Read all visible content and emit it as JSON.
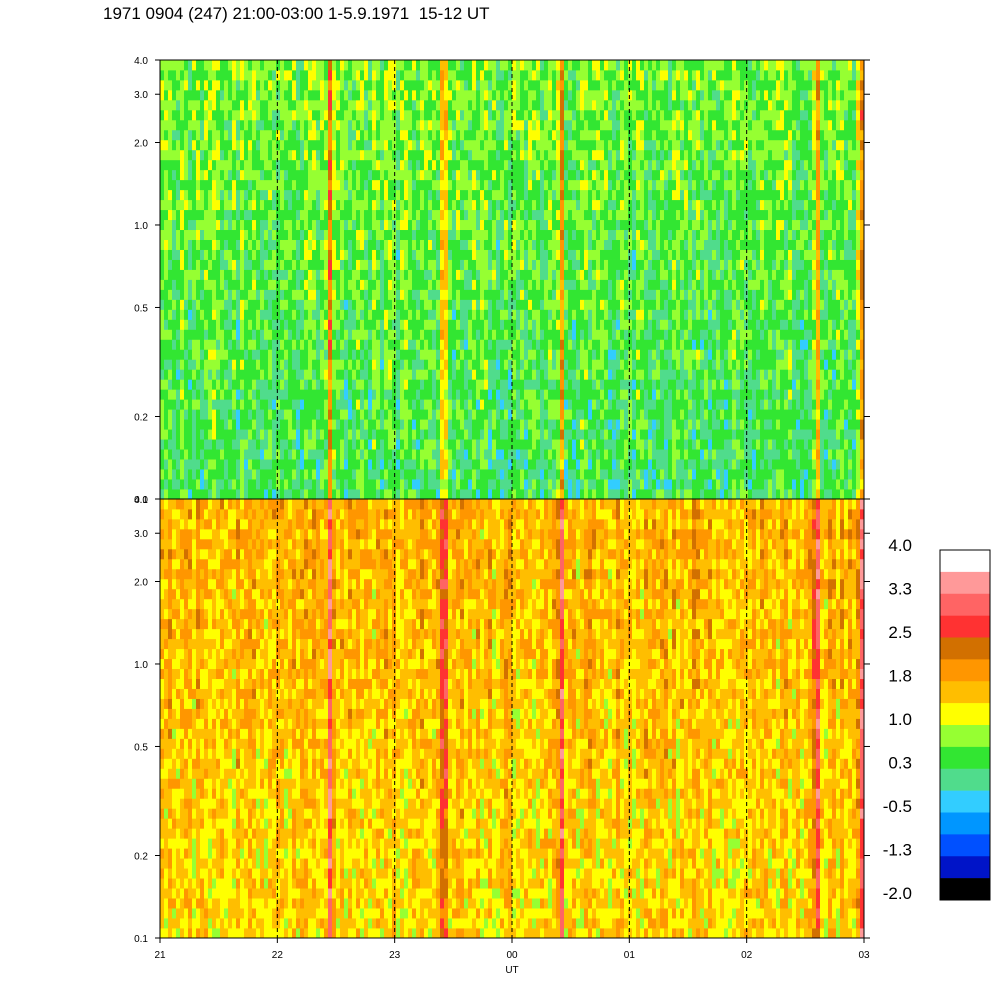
{
  "title": "1971 0904 (247) 21:00-03:00 1-5.9.1971  15-12 UT",
  "chart_data": {
    "type": "heatmap",
    "panels": [
      {
        "name": "",
        "y_scale": "log",
        "ylim": [
          0.1,
          4.0
        ],
        "y_ticks": [
          "4.0",
          "3.0",
          "2.0",
          "1.0",
          "0.5",
          "0.2",
          "0.1"
        ],
        "y_tick_values": [
          4.0,
          3.0,
          2.0,
          1.0,
          0.5,
          0.2,
          0.1
        ],
        "typical_level_low_freq": 0.3,
        "typical_level_high_freq": 0.7
      },
      {
        "name": "",
        "y_scale": "log",
        "ylim": [
          0.1,
          4.0
        ],
        "y_ticks": [
          "4.0",
          "3.0",
          "2.0",
          "1.0",
          "0.5",
          "0.2",
          "0.1"
        ],
        "y_tick_values": [
          4.0,
          3.0,
          2.0,
          1.0,
          0.5,
          0.2,
          0.1
        ],
        "typical_level_low_freq": 1.4,
        "typical_level_high_freq": 1.7
      }
    ],
    "x_ticks": [
      "21",
      "22",
      "23",
      "00",
      "01",
      "02",
      "03"
    ],
    "x_tick_values": [
      21,
      22,
      23,
      24,
      25,
      26,
      27
    ],
    "xlim": [
      21,
      27
    ],
    "xlabel": "UT",
    "ylabel": "",
    "grid": "vertical dashed at each hour",
    "highlight_events_hours": [
      22.45,
      23.42,
      24.42,
      26.6,
      26.98
    ],
    "colorbar": {
      "labels": [
        "4.0",
        "3.3",
        "2.5",
        "1.8",
        "1.0",
        "0.3",
        "-0.5",
        "-1.3",
        "-2.0"
      ],
      "range": [
        -2.0,
        4.0
      ],
      "colors": [
        "#ffffff",
        "#ff9999",
        "#ff6464",
        "#ff3232",
        "#d27000",
        "#ff9600",
        "#ffbe00",
        "#ffff00",
        "#96ff32",
        "#32e632",
        "#50dc8c",
        "#32cdff",
        "#0096ff",
        "#0050ff",
        "#0014c8",
        "#000000"
      ]
    }
  }
}
